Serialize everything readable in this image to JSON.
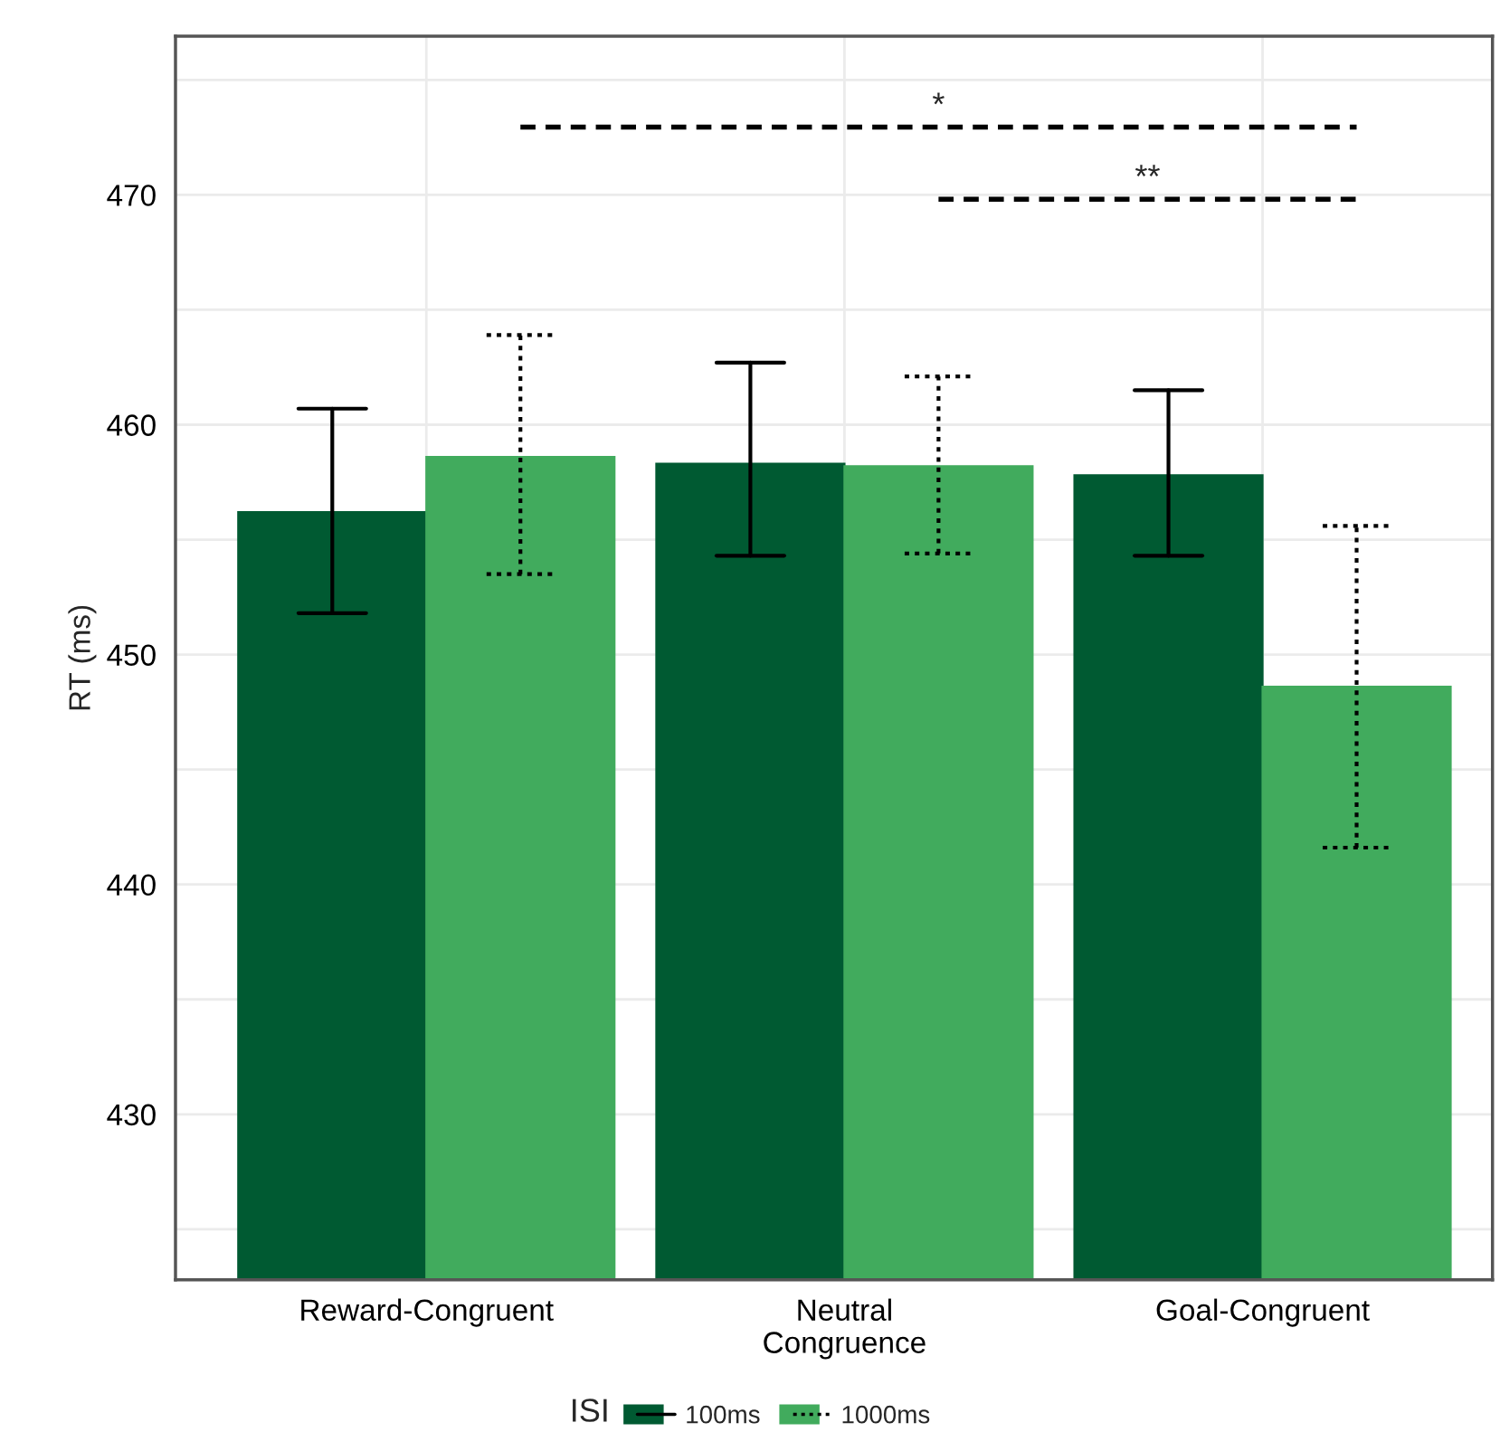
{
  "chart_data": {
    "type": "bar",
    "ylabel": "RT (ms)",
    "legend_title": "ISI",
    "categories": [
      "Reward-Congruent",
      "Neutral\nCongruence",
      "Goal-Congruent"
    ],
    "series": [
      {
        "name": "100ms",
        "color": "#005a32",
        "values": [
          456.2,
          458.3,
          457.8
        ],
        "errors": [
          [
            451.8,
            460.7
          ],
          [
            454.3,
            462.7
          ],
          [
            454.3,
            461.5
          ]
        ],
        "line_style": "solid"
      },
      {
        "name": "1000ms",
        "color": "#41ab5d",
        "values": [
          458.6,
          458.2,
          448.6
        ],
        "errors": [
          [
            453.5,
            463.9
          ],
          [
            454.4,
            462.1
          ],
          [
            441.6,
            455.6
          ]
        ],
        "line_style": "dotted"
      }
    ],
    "ylim": [
      422.8,
      476.9
    ],
    "yticks": [
      430,
      440,
      450,
      460,
      470
    ],
    "annotations": [
      "*",
      "**"
    ],
    "grid": true,
    "legend": "bottom"
  }
}
